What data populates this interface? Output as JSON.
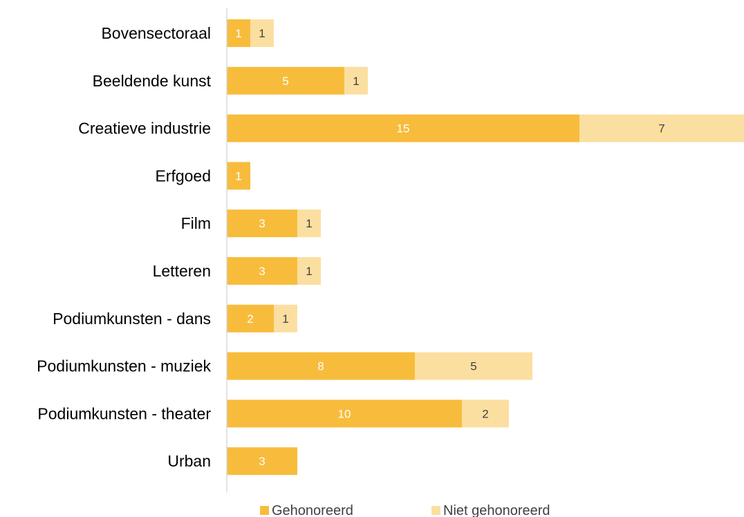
{
  "chart_data": {
    "type": "bar",
    "orientation": "horizontal",
    "stacked": true,
    "categories": [
      "Bovensectoraal",
      "Beeldende kunst",
      "Creatieve industrie",
      "Erfgoed",
      "Film",
      "Letteren",
      "Podiumkunsten - dans",
      "Podiumkunsten - muziek",
      "Podiumkunsten - theater",
      "Urban"
    ],
    "series": [
      {
        "name": "Gehonoreerd",
        "values": [
          1,
          5,
          15,
          1,
          3,
          3,
          2,
          8,
          10,
          3
        ],
        "color": "#F8BC3C",
        "label_color": "#FFFFFF"
      },
      {
        "name": "Niet gehonoreerd",
        "values": [
          1,
          1,
          7,
          0,
          1,
          1,
          1,
          5,
          2,
          0
        ],
        "color": "#FBDFA1",
        "label_color": "#404040"
      }
    ],
    "xlim": [
      0,
      22
    ],
    "grid": false,
    "legend_position": "bottom"
  }
}
